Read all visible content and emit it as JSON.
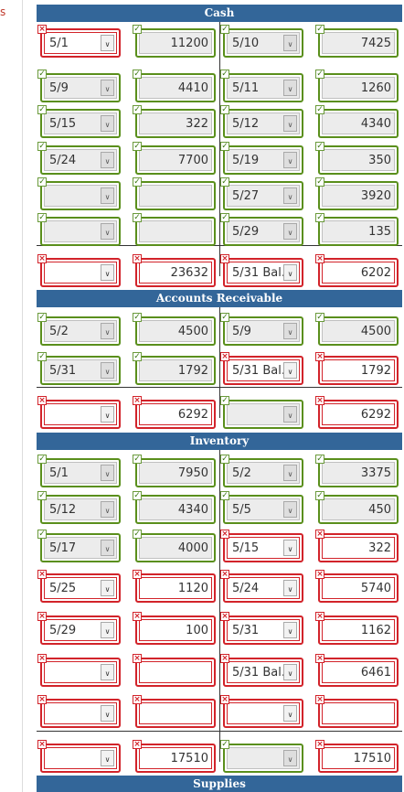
{
  "left_fragment": "s",
  "sections": [
    {
      "title": "Cash",
      "rows": [
        [
          {
            "v": "5/1",
            "ok": false
          },
          {
            "v": "11200",
            "ok": true
          },
          {
            "v": "5/10",
            "ok": true
          },
          {
            "v": "7425",
            "ok": true
          }
        ],
        [
          {
            "v": "5/9",
            "ok": true
          },
          {
            "v": "4410",
            "ok": true
          },
          {
            "v": "5/11",
            "ok": true
          },
          {
            "v": "1260",
            "ok": true
          }
        ],
        [
          {
            "v": "5/15",
            "ok": true
          },
          {
            "v": "322",
            "ok": true
          },
          {
            "v": "5/12",
            "ok": true
          },
          {
            "v": "4340",
            "ok": true
          }
        ],
        [
          {
            "v": "5/24",
            "ok": true
          },
          {
            "v": "7700",
            "ok": true
          },
          {
            "v": "5/19",
            "ok": true
          },
          {
            "v": "350",
            "ok": true
          }
        ],
        [
          {
            "v": "",
            "ok": true
          },
          {
            "v": "",
            "ok": true
          },
          {
            "v": "5/27",
            "ok": true
          },
          {
            "v": "3920",
            "ok": true
          }
        ],
        [
          {
            "v": "",
            "ok": true
          },
          {
            "v": "",
            "ok": true
          },
          {
            "v": "5/29",
            "ok": true
          },
          {
            "v": "135",
            "ok": true
          }
        ],
        [
          {
            "v": "",
            "ok": false
          },
          {
            "v": "23632",
            "ok": false
          },
          {
            "v": "5/31 Bal.",
            "ok": false
          },
          {
            "v": "6202",
            "ok": false
          }
        ]
      ]
    },
    {
      "title": "Accounts Receivable",
      "rows": [
        [
          {
            "v": "5/2",
            "ok": true
          },
          {
            "v": "4500",
            "ok": true
          },
          {
            "v": "5/9",
            "ok": true
          },
          {
            "v": "4500",
            "ok": true
          }
        ],
        [
          {
            "v": "5/31",
            "ok": true
          },
          {
            "v": "1792",
            "ok": true
          },
          {
            "v": "5/31 Bal.",
            "ok": false
          },
          {
            "v": "1792",
            "ok": false
          }
        ],
        [
          {
            "v": "",
            "ok": false
          },
          {
            "v": "6292",
            "ok": false
          },
          {
            "v": "",
            "ok": true
          },
          {
            "v": "6292",
            "ok": false
          }
        ]
      ]
    },
    {
      "title": "Inventory",
      "rows": [
        [
          {
            "v": "5/1",
            "ok": true
          },
          {
            "v": "7950",
            "ok": true
          },
          {
            "v": "5/2",
            "ok": true
          },
          {
            "v": "3375",
            "ok": true
          }
        ],
        [
          {
            "v": "5/12",
            "ok": true
          },
          {
            "v": "4340",
            "ok": true
          },
          {
            "v": "5/5",
            "ok": true
          },
          {
            "v": "450",
            "ok": true
          }
        ],
        [
          {
            "v": "5/17",
            "ok": true
          },
          {
            "v": "4000",
            "ok": true
          },
          {
            "v": "5/15",
            "ok": false
          },
          {
            "v": "322",
            "ok": false
          }
        ],
        [
          {
            "v": "5/25",
            "ok": false
          },
          {
            "v": "1120",
            "ok": false
          },
          {
            "v": "5/24",
            "ok": false
          },
          {
            "v": "5740",
            "ok": false
          }
        ],
        [
          {
            "v": "5/29",
            "ok": false
          },
          {
            "v": "100",
            "ok": false
          },
          {
            "v": "5/31",
            "ok": false
          },
          {
            "v": "1162",
            "ok": false
          }
        ],
        [
          {
            "v": "",
            "ok": false
          },
          {
            "v": "",
            "ok": false
          },
          {
            "v": "5/31 Bal.",
            "ok": false
          },
          {
            "v": "6461",
            "ok": false
          }
        ],
        [
          {
            "v": "",
            "ok": false
          },
          {
            "v": "",
            "ok": false
          },
          {
            "v": "",
            "ok": false
          },
          {
            "v": "",
            "ok": false
          }
        ],
        [
          {
            "v": "",
            "ok": false
          },
          {
            "v": "17510",
            "ok": false
          },
          {
            "v": "",
            "ok": true
          },
          {
            "v": "17510",
            "ok": false
          }
        ]
      ]
    },
    {
      "title": "Supplies",
      "rows": []
    }
  ],
  "icons": {
    "correct": "check-icon",
    "incorrect": "x-icon",
    "dropdown": "chevron-down-icon"
  },
  "colors": {
    "header": "#336699",
    "correct": "#5a8f1c",
    "incorrect": "#d2232a"
  }
}
